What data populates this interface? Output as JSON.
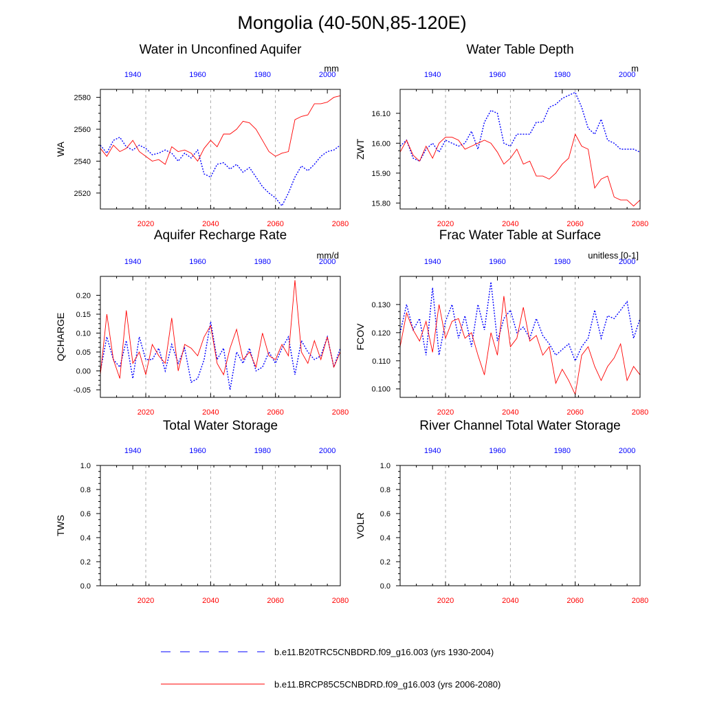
{
  "figure": {
    "title": "Mongolia (40-50N,85-120E)"
  },
  "legend": [
    {
      "label": "b.e11.B20TRC5CNBDRD.f09_g16.003 (yrs 1930-2004)",
      "color": "#0000ff",
      "style": "dashed"
    },
    {
      "label": "b.e11.BRCP85C5CNBDRD.f09_g16.003 (yrs 2006-2080)",
      "color": "#ff0000",
      "style": "solid"
    }
  ],
  "colors": {
    "historical": "#0000ff",
    "future": "#ff0000"
  },
  "chart_data": [
    {
      "type": "line",
      "title": "Water in Unconfined Aquifer",
      "unit": "mm",
      "ylabel": "WA",
      "ylim": [
        2510,
        2585
      ],
      "yticks": [
        2520,
        2540,
        2560,
        2580
      ],
      "ytick_labels": [
        "2520",
        "2540",
        "2560",
        "2580"
      ],
      "bottom_axis": {
        "range": [
          2006,
          2080
        ],
        "ticks": [
          2020,
          2040,
          2060,
          2080
        ],
        "tick_labels": [
          "2020",
          "2040",
          "2060",
          "2080"
        ]
      },
      "top_axis": {
        "range": [
          1930,
          2004
        ],
        "ticks": [
          1940,
          1960,
          1980,
          2000
        ],
        "tick_labels": [
          "1940",
          "1960",
          "1980",
          "2000"
        ]
      },
      "grid": "dashed vertical lines at 2020, 2040, 2060",
      "series": [
        {
          "years": [
            1930,
            1932,
            1934,
            1936,
            1938,
            1940,
            1942,
            1944,
            1946,
            1948,
            1950,
            1952,
            1954,
            1956,
            1958,
            1960,
            1962,
            1964,
            1966,
            1968,
            1970,
            1972,
            1974,
            1976,
            1978,
            1980,
            1982,
            1984,
            1986,
            1988,
            1990,
            1992,
            1994,
            1996,
            1998,
            2000,
            2002,
            2004
          ],
          "values": [
            2550,
            2545,
            2553,
            2555,
            2549,
            2547,
            2550,
            2548,
            2544,
            2545,
            2547,
            2545,
            2540,
            2545,
            2542,
            2547,
            2532,
            2530,
            2538,
            2539,
            2535,
            2538,
            2533,
            2536,
            2530,
            2524,
            2520,
            2517,
            2512,
            2520,
            2530,
            2537,
            2534,
            2538,
            2543,
            2546,
            2547,
            2550
          ]
        },
        {
          "years": [
            2006,
            2008,
            2010,
            2012,
            2014,
            2016,
            2018,
            2020,
            2022,
            2024,
            2026,
            2028,
            2030,
            2032,
            2034,
            2036,
            2038,
            2040,
            2042,
            2044,
            2046,
            2048,
            2050,
            2052,
            2054,
            2056,
            2058,
            2060,
            2062,
            2064,
            2066,
            2068,
            2070,
            2072,
            2074,
            2076,
            2078,
            2080
          ],
          "values": [
            2548,
            2543,
            2550,
            2546,
            2548,
            2553,
            2546,
            2543,
            2540,
            2541,
            2538,
            2549,
            2546,
            2547,
            2545,
            2540,
            2548,
            2553,
            2549,
            2557,
            2557,
            2560,
            2565,
            2564,
            2560,
            2553,
            2546,
            2543,
            2545,
            2546,
            2566,
            2568,
            2569,
            2576,
            2576,
            2577,
            2580,
            2581
          ]
        }
      ]
    },
    {
      "type": "line",
      "title": "Water Table Depth",
      "unit": "m",
      "ylabel": "ZWT",
      "ylim": [
        15.78,
        16.18
      ],
      "yticks": [
        15.8,
        15.9,
        16.0,
        16.1
      ],
      "ytick_labels": [
        "15.80",
        "15.90",
        "16.00",
        "16.10"
      ],
      "bottom_axis": {
        "range": [
          2006,
          2080
        ],
        "ticks": [
          2020,
          2040,
          2060,
          2080
        ],
        "tick_labels": [
          "2020",
          "2040",
          "2060",
          "2080"
        ]
      },
      "top_axis": {
        "range": [
          1930,
          2004
        ],
        "ticks": [
          1940,
          1960,
          1980,
          2000
        ],
        "tick_labels": [
          "1940",
          "1960",
          "1980",
          "2000"
        ]
      },
      "grid": "dashed vertical lines at 2020, 2040, 2060",
      "series": [
        {
          "years": [
            1930,
            1932,
            1934,
            1936,
            1938,
            1940,
            1942,
            1944,
            1946,
            1948,
            1950,
            1952,
            1954,
            1956,
            1958,
            1960,
            1962,
            1964,
            1966,
            1968,
            1970,
            1972,
            1974,
            1976,
            1978,
            1980,
            1982,
            1984,
            1986,
            1988,
            1990,
            1992,
            1994,
            1996,
            1998,
            2000,
            2002,
            2004
          ],
          "values": [
            15.99,
            16.01,
            15.95,
            15.94,
            15.98,
            16.0,
            15.97,
            16.01,
            16.0,
            15.99,
            16.0,
            16.04,
            15.98,
            16.07,
            16.11,
            16.1,
            16.0,
            15.99,
            16.03,
            16.03,
            16.03,
            16.07,
            16.07,
            16.12,
            16.13,
            16.15,
            16.16,
            16.17,
            16.12,
            16.05,
            16.03,
            16.08,
            16.01,
            16.0,
            15.98,
            15.98,
            15.98,
            15.97
          ]
        },
        {
          "years": [
            2006,
            2008,
            2010,
            2012,
            2014,
            2016,
            2018,
            2020,
            2022,
            2024,
            2026,
            2028,
            2030,
            2032,
            2034,
            2036,
            2038,
            2040,
            2042,
            2044,
            2046,
            2048,
            2050,
            2052,
            2054,
            2056,
            2058,
            2060,
            2062,
            2064,
            2066,
            2068,
            2070,
            2072,
            2074,
            2076,
            2078,
            2080
          ],
          "values": [
            15.97,
            16.01,
            15.96,
            15.94,
            15.99,
            15.95,
            16.0,
            16.02,
            16.02,
            16.01,
            15.98,
            15.99,
            16.0,
            16.01,
            16.0,
            15.97,
            15.93,
            15.95,
            15.98,
            15.93,
            15.94,
            15.89,
            15.89,
            15.88,
            15.9,
            15.93,
            15.95,
            16.03,
            15.99,
            15.98,
            15.85,
            15.88,
            15.89,
            15.82,
            15.81,
            15.81,
            15.79,
            15.81
          ]
        }
      ]
    },
    {
      "type": "line",
      "title": "Aquifer Recharge Rate",
      "unit": "mm/d",
      "ylabel": "QCHARGE",
      "ylim": [
        -0.07,
        0.25
      ],
      "yticks": [
        -0.05,
        0.0,
        0.05,
        0.1,
        0.15,
        0.2
      ],
      "ytick_labels": [
        "-0.05",
        "0.00",
        "0.05",
        "0.10",
        "0.15",
        "0.20"
      ],
      "bottom_axis": {
        "range": [
          2006,
          2080
        ],
        "ticks": [
          2020,
          2040,
          2060,
          2080
        ],
        "tick_labels": [
          "2020",
          "2040",
          "2060",
          "2080"
        ]
      },
      "top_axis": {
        "range": [
          1930,
          2004
        ],
        "ticks": [
          1940,
          1960,
          1980,
          2000
        ],
        "tick_labels": [
          "1940",
          "1960",
          "1980",
          "2000"
        ]
      },
      "grid": "dashed vertical lines at 2020, 2040, 2060",
      "series": [
        {
          "years": [
            1930,
            1932,
            1934,
            1936,
            1938,
            1940,
            1942,
            1944,
            1946,
            1948,
            1950,
            1952,
            1954,
            1956,
            1958,
            1960,
            1962,
            1964,
            1966,
            1968,
            1970,
            1972,
            1974,
            1976,
            1978,
            1980,
            1982,
            1984,
            1986,
            1988,
            1990,
            1992,
            1994,
            1996,
            1998,
            2000,
            2002,
            2004
          ],
          "values": [
            0.0,
            0.09,
            0.03,
            0.01,
            0.08,
            -0.02,
            0.09,
            0.03,
            0.03,
            0.06,
            0.0,
            0.07,
            0.02,
            0.06,
            -0.03,
            -0.02,
            0.03,
            0.13,
            0.03,
            0.06,
            -0.05,
            0.05,
            0.02,
            0.06,
            0.0,
            0.01,
            0.05,
            0.02,
            0.06,
            0.09,
            -0.01,
            0.08,
            0.05,
            0.03,
            0.04,
            0.09,
            0.01,
            0.06
          ]
        },
        {
          "years": [
            2006,
            2008,
            2010,
            2012,
            2014,
            2016,
            2018,
            2020,
            2022,
            2024,
            2026,
            2028,
            2030,
            2032,
            2034,
            2036,
            2038,
            2040,
            2042,
            2044,
            2046,
            2048,
            2050,
            2052,
            2054,
            2056,
            2058,
            2060,
            2062,
            2064,
            2066,
            2068,
            2070,
            2072,
            2074,
            2076,
            2078,
            2080
          ],
          "values": [
            -0.01,
            0.15,
            0.03,
            -0.02,
            0.16,
            0.02,
            0.05,
            -0.01,
            0.07,
            0.04,
            0.02,
            0.14,
            0.0,
            0.07,
            0.06,
            0.04,
            0.09,
            0.12,
            0.02,
            -0.01,
            0.06,
            0.11,
            0.03,
            0.05,
            0.01,
            0.1,
            0.04,
            0.03,
            0.07,
            0.04,
            0.24,
            0.05,
            0.02,
            0.08,
            0.03,
            0.09,
            0.01,
            0.05
          ]
        }
      ]
    },
    {
      "type": "line",
      "title": "Frac Water Table at Surface",
      "unit": "unitless [0-1]",
      "ylabel": "FCOV",
      "ylim": [
        0.097,
        0.14
      ],
      "yticks": [
        0.1,
        0.11,
        0.12,
        0.13
      ],
      "ytick_labels": [
        "0.100",
        "0.110",
        "0.120",
        "0.130"
      ],
      "bottom_axis": {
        "range": [
          2006,
          2080
        ],
        "ticks": [
          2020,
          2040,
          2060,
          2080
        ],
        "tick_labels": [
          "2020",
          "2040",
          "2060",
          "2080"
        ]
      },
      "top_axis": {
        "range": [
          1930,
          2004
        ],
        "ticks": [
          1940,
          1960,
          1980,
          2000
        ],
        "tick_labels": [
          "1940",
          "1960",
          "1980",
          "2000"
        ]
      },
      "grid": "dashed vertical lines at 2020, 2040, 2060",
      "series": [
        {
          "years": [
            1930,
            1932,
            1934,
            1936,
            1938,
            1940,
            1942,
            1944,
            1946,
            1948,
            1950,
            1952,
            1954,
            1956,
            1958,
            1960,
            1962,
            1964,
            1966,
            1968,
            1970,
            1972,
            1974,
            1976,
            1978,
            1980,
            1982,
            1984,
            1986,
            1988,
            1990,
            1992,
            1994,
            1996,
            1998,
            2000,
            2002,
            2004
          ],
          "values": [
            0.12,
            0.13,
            0.121,
            0.125,
            0.112,
            0.136,
            0.112,
            0.124,
            0.13,
            0.118,
            0.126,
            0.115,
            0.13,
            0.121,
            0.138,
            0.117,
            0.125,
            0.128,
            0.12,
            0.122,
            0.118,
            0.125,
            0.119,
            0.116,
            0.112,
            0.114,
            0.116,
            0.11,
            0.115,
            0.118,
            0.128,
            0.118,
            0.126,
            0.125,
            0.128,
            0.131,
            0.118,
            0.125
          ]
        },
        {
          "years": [
            2006,
            2008,
            2010,
            2012,
            2014,
            2016,
            2018,
            2020,
            2022,
            2024,
            2026,
            2028,
            2030,
            2032,
            2034,
            2036,
            2038,
            2040,
            2042,
            2044,
            2046,
            2048,
            2050,
            2052,
            2054,
            2056,
            2058,
            2060,
            2062,
            2064,
            2066,
            2068,
            2070,
            2072,
            2074,
            2076,
            2078,
            2080
          ],
          "values": [
            0.115,
            0.127,
            0.121,
            0.117,
            0.124,
            0.113,
            0.13,
            0.118,
            0.124,
            0.125,
            0.118,
            0.12,
            0.112,
            0.105,
            0.12,
            0.112,
            0.133,
            0.115,
            0.118,
            0.129,
            0.117,
            0.119,
            0.112,
            0.115,
            0.102,
            0.107,
            0.103,
            0.098,
            0.112,
            0.115,
            0.108,
            0.103,
            0.108,
            0.111,
            0.116,
            0.103,
            0.108,
            0.105
          ]
        }
      ]
    },
    {
      "type": "line",
      "title": "Total Water Storage",
      "unit": "",
      "ylabel": "TWS",
      "ylim": [
        0.0,
        1.0
      ],
      "yticks": [
        0.0,
        0.2,
        0.4,
        0.6,
        0.8,
        1.0
      ],
      "ytick_labels": [
        "0.0",
        "0.2",
        "0.4",
        "0.6",
        "0.8",
        "1.0"
      ],
      "bottom_axis": {
        "range": [
          2006,
          2080
        ],
        "ticks": [
          2020,
          2040,
          2060,
          2080
        ],
        "tick_labels": [
          "2020",
          "2040",
          "2060",
          "2080"
        ]
      },
      "top_axis": {
        "range": [
          1930,
          2004
        ],
        "ticks": [
          1940,
          1960,
          1980,
          2000
        ],
        "tick_labels": [
          "1940",
          "1960",
          "1980",
          "2000"
        ]
      },
      "grid": "dashed vertical lines at 2020, 2040, 2060",
      "series": []
    },
    {
      "type": "line",
      "title": "River Channel Total Water Storage",
      "unit": "",
      "ylabel": "VOLR",
      "ylim": [
        0.0,
        1.0
      ],
      "yticks": [
        0.0,
        0.2,
        0.4,
        0.6,
        0.8,
        1.0
      ],
      "ytick_labels": [
        "0.0",
        "0.2",
        "0.4",
        "0.6",
        "0.8",
        "1.0"
      ],
      "bottom_axis": {
        "range": [
          2006,
          2080
        ],
        "ticks": [
          2020,
          2040,
          2060,
          2080
        ],
        "tick_labels": [
          "2020",
          "2040",
          "2060",
          "2080"
        ]
      },
      "top_axis": {
        "range": [
          1930,
          2004
        ],
        "ticks": [
          1940,
          1960,
          1980,
          2000
        ],
        "tick_labels": [
          "1940",
          "1960",
          "1980",
          "2000"
        ]
      },
      "grid": "dashed vertical lines at 2020, 2040, 2060",
      "series": []
    }
  ]
}
